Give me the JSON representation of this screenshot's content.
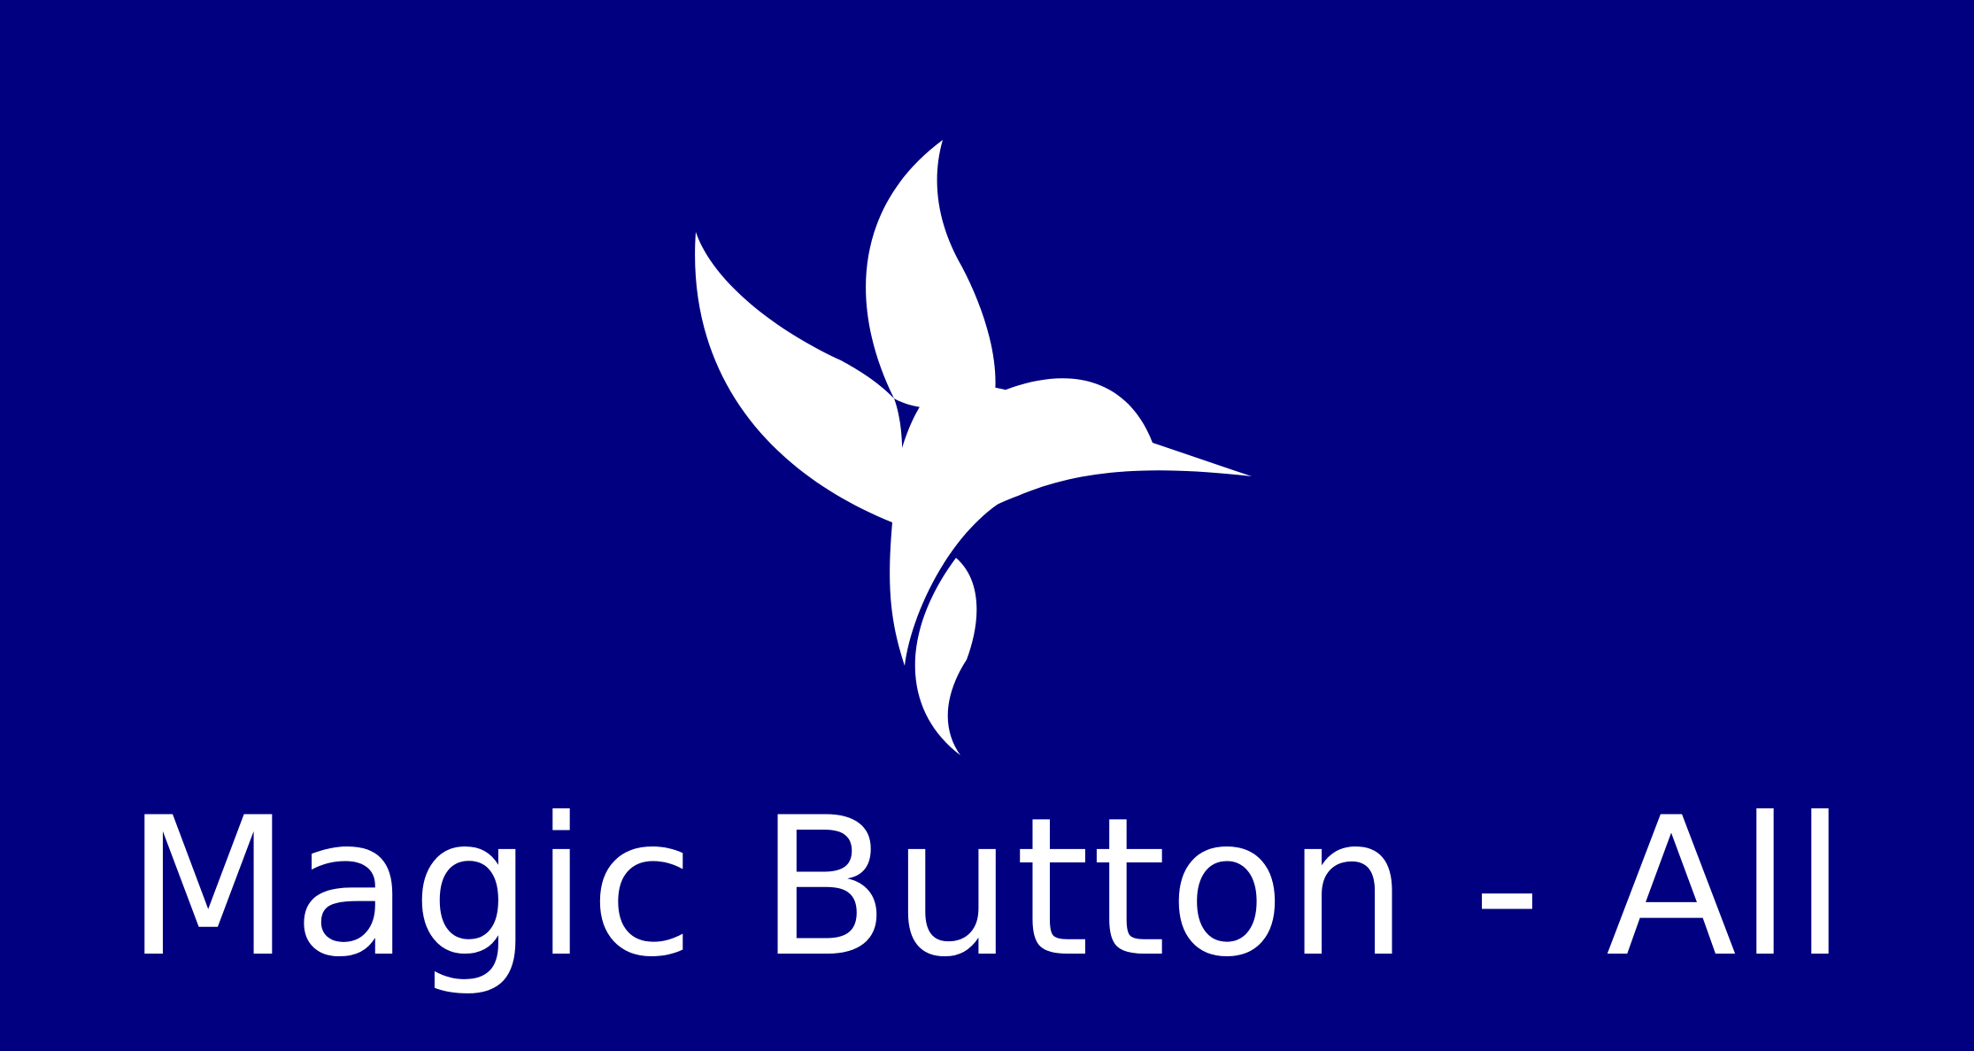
{
  "title": "Magic Button  -  All",
  "logo_icon": "hummingbird-icon",
  "colors": {
    "background": "#000080",
    "foreground": "#ffffff"
  }
}
